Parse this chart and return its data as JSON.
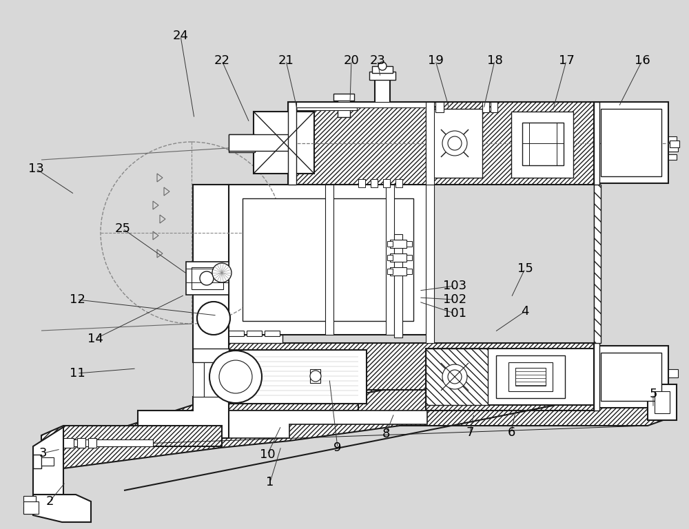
{
  "bg_color": "#d8d8d8",
  "line_color": "#1a1a1a",
  "figsize": [
    10.0,
    7.68
  ],
  "dpi": 100,
  "labels": [
    [
      "1",
      392,
      700
    ],
    [
      "2",
      72,
      728
    ],
    [
      "3",
      62,
      658
    ],
    [
      "4",
      762,
      452
    ],
    [
      "5",
      948,
      572
    ],
    [
      "6",
      742,
      628
    ],
    [
      "7",
      682,
      628
    ],
    [
      "8",
      560,
      630
    ],
    [
      "9",
      490,
      650
    ],
    [
      "10",
      388,
      660
    ],
    [
      "11",
      112,
      542
    ],
    [
      "12",
      112,
      435
    ],
    [
      "13",
      52,
      245
    ],
    [
      "14",
      138,
      492
    ],
    [
      "15",
      762,
      390
    ],
    [
      "16",
      932,
      88
    ],
    [
      "17",
      822,
      88
    ],
    [
      "18",
      718,
      88
    ],
    [
      "19",
      632,
      88
    ],
    [
      "20",
      510,
      88
    ],
    [
      "21",
      415,
      88
    ],
    [
      "22",
      322,
      88
    ],
    [
      "23",
      548,
      88
    ],
    [
      "24",
      262,
      52
    ],
    [
      "25",
      178,
      332
    ],
    [
      "101",
      660,
      455
    ],
    [
      "102",
      660,
      435
    ],
    [
      "103",
      660,
      415
    ]
  ],
  "label_lines": [
    [
      "1",
      392,
      700,
      408,
      648
    ],
    [
      "2",
      72,
      728,
      95,
      700
    ],
    [
      "3",
      62,
      658,
      88,
      652
    ],
    [
      "4",
      762,
      452,
      718,
      482
    ],
    [
      "5",
      948,
      572,
      948,
      592
    ],
    [
      "6",
      742,
      628,
      748,
      598
    ],
    [
      "7",
      682,
      628,
      688,
      600
    ],
    [
      "8",
      560,
      630,
      572,
      600
    ],
    [
      "9",
      490,
      650,
      478,
      550
    ],
    [
      "10",
      388,
      660,
      408,
      618
    ],
    [
      "11",
      112,
      542,
      198,
      535
    ],
    [
      "12",
      112,
      435,
      315,
      458
    ],
    [
      "13",
      52,
      245,
      108,
      282
    ],
    [
      "14",
      138,
      492,
      268,
      428
    ],
    [
      "15",
      762,
      390,
      742,
      432
    ],
    [
      "16",
      932,
      88,
      898,
      155
    ],
    [
      "17",
      822,
      88,
      802,
      162
    ],
    [
      "18",
      718,
      88,
      702,
      158
    ],
    [
      "19",
      632,
      88,
      652,
      158
    ],
    [
      "20",
      510,
      88,
      508,
      148
    ],
    [
      "21",
      415,
      88,
      432,
      162
    ],
    [
      "22",
      322,
      88,
      362,
      178
    ],
    [
      "23",
      548,
      88,
      552,
      112
    ],
    [
      "24",
      262,
      52,
      282,
      172
    ],
    [
      "25",
      178,
      332,
      272,
      398
    ],
    [
      "101",
      660,
      455,
      608,
      438
    ],
    [
      "102",
      660,
      435,
      608,
      432
    ],
    [
      "103",
      660,
      415,
      608,
      422
    ]
  ]
}
